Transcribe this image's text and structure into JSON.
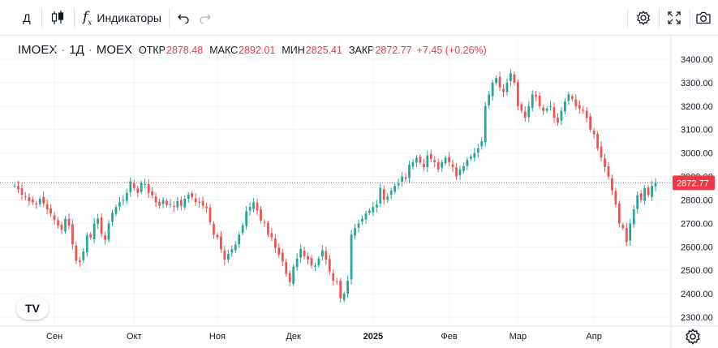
{
  "toolbar": {
    "interval_label": "Д",
    "indicators_label": "Индикаторы",
    "fx_icon_text": "f",
    "fx_icon_sub": "x"
  },
  "legend": {
    "symbol": "IMOEX",
    "interval": "1Д",
    "exchange": "MOEX",
    "open_label": "ОТКР",
    "open": "2878.48",
    "high_label": "МАКС",
    "high": "2892.01",
    "low_label": "МИН",
    "low": "2825.41",
    "close_label": "ЗАКР",
    "close": "2872.77",
    "change": "+7.45 (+0.26%)"
  },
  "colors": {
    "up": "#26a69a",
    "down": "#ef5350",
    "price_tag": "#f23645",
    "grid": "#f0f3fa",
    "axis_text": "#131722"
  },
  "logo_text": "TV",
  "chart_data": {
    "type": "candlestick",
    "title": "",
    "y_ticks": [
      "2300.00",
      "2400.00",
      "2500.00",
      "2600.00",
      "2700.00",
      "2800.00",
      "2900.00",
      "3000.00",
      "3100.00",
      "3200.00",
      "3300.00",
      "3400.00"
    ],
    "ylim": [
      2270,
      3450
    ],
    "x_ticks": [
      {
        "label": "Сен",
        "index": 11,
        "bold": false
      },
      {
        "label": "Окт",
        "index": 33,
        "bold": false
      },
      {
        "label": "Ноя",
        "index": 56,
        "bold": false
      },
      {
        "label": "Дек",
        "index": 77,
        "bold": false
      },
      {
        "label": "2025",
        "index": 99,
        "bold": true
      },
      {
        "label": "Фев",
        "index": 120,
        "bold": false
      },
      {
        "label": "Мар",
        "index": 139,
        "bold": false
      },
      {
        "label": "Апр",
        "index": 160,
        "bold": false
      }
    ],
    "last_price": 2872.77,
    "last_price_label": "2872.77",
    "closes": [
      2861,
      2845,
      2822,
      2812,
      2795,
      2790,
      2780,
      2805,
      2785,
      2760,
      2742,
      2715,
      2690,
      2672,
      2720,
      2690,
      2610,
      2540,
      2535,
      2580,
      2650,
      2640,
      2700,
      2720,
      2655,
      2630,
      2700,
      2745,
      2770,
      2790,
      2800,
      2830,
      2880,
      2850,
      2830,
      2872,
      2868,
      2830,
      2820,
      2790,
      2775,
      2800,
      2778,
      2782,
      2770,
      2795,
      2775,
      2805,
      2822,
      2812,
      2790,
      2788,
      2775,
      2765,
      2705,
      2652,
      2640,
      2590,
      2545,
      2570,
      2590,
      2610,
      2652,
      2692,
      2752,
      2770,
      2790,
      2755,
      2712,
      2702,
      2652,
      2640,
      2595,
      2567,
      2538,
      2485,
      2450,
      2515,
      2550,
      2590,
      2560,
      2545,
      2520,
      2520,
      2550,
      2585,
      2545,
      2495,
      2455,
      2450,
      2380,
      2400,
      2455,
      2652,
      2680,
      2700,
      2720,
      2742,
      2755,
      2770,
      2780,
      2852,
      2800,
      2815,
      2840,
      2860,
      2870,
      2900,
      2890,
      2950,
      2960,
      2980,
      2960,
      2940,
      2990,
      2975,
      2960,
      2930,
      2960,
      2980,
      2960,
      2940,
      2900,
      2930,
      2945,
      2970,
      2985,
      3000,
      3020,
      3050,
      3200,
      3250,
      3300,
      3320,
      3280,
      3260,
      3300,
      3340,
      3300,
      3200,
      3180,
      3150,
      3200,
      3250,
      3240,
      3200,
      3180,
      3190,
      3200,
      3150,
      3130,
      3180,
      3220,
      3250,
      3230,
      3200,
      3190,
      3180,
      3150,
      3100,
      3080,
      3020,
      2980,
      2940,
      2900,
      2840,
      2780,
      2700,
      2680,
      2620,
      2700,
      2760,
      2820,
      2800,
      2850,
      2820,
      2860,
      2872.77
    ]
  }
}
